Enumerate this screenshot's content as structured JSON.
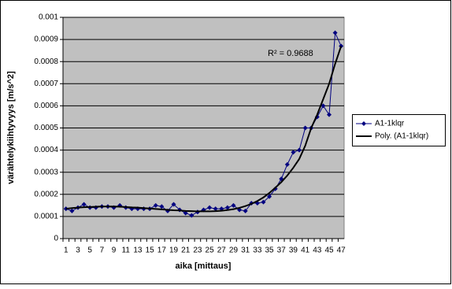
{
  "chart_data": {
    "type": "line",
    "x_label": "aika [mittaus]",
    "y_label": "värähtelykiihtyvyys [m/s^2]",
    "annotation": "R² = 0.9688",
    "categories": [
      1,
      null,
      3,
      null,
      5,
      null,
      7,
      null,
      9,
      null,
      11,
      null,
      13,
      null,
      15,
      null,
      17,
      null,
      19,
      null,
      21,
      null,
      23,
      null,
      25,
      null,
      27,
      null,
      29,
      null,
      31,
      null,
      33,
      null,
      35,
      null,
      37,
      null,
      39,
      null,
      41,
      null,
      43,
      null,
      45,
      null,
      47
    ],
    "series": [
      {
        "name": "A1-1klqr",
        "color": "#000080",
        "marker": "diamond",
        "values": [
          0.000135,
          0.000125,
          0.00014,
          0.000155,
          0.00014,
          0.00014,
          0.000145,
          0.000145,
          0.00014,
          0.00015,
          0.00014,
          0.000135,
          0.000135,
          0.000135,
          0.000135,
          0.00015,
          0.000145,
          0.000125,
          0.000155,
          0.00013,
          0.000115,
          0.000105,
          0.00012,
          0.00013,
          0.00014,
          0.000135,
          0.000135,
          0.00014,
          0.00015,
          0.00013,
          0.000125,
          0.00016,
          0.00016,
          0.000165,
          0.00019,
          0.000225,
          0.00027,
          0.000335,
          0.00039,
          0.0004,
          0.0005,
          0.0005,
          0.00055,
          0.0006,
          0.00056,
          0.00093,
          0.00087
        ]
      },
      {
        "name": "Poly. (A1-1klqr)",
        "color": "#000000",
        "marker": "none",
        "values": [
          0.000135,
          0.000138,
          0.00014,
          0.000142,
          0.000143,
          0.000144,
          0.000145,
          0.000145,
          0.000145,
          0.000144,
          0.000143,
          0.000141,
          0.00014,
          0.000138,
          0.000136,
          0.000134,
          0.000132,
          0.00013,
          0.000128,
          0.000127,
          0.000125,
          0.000124,
          0.000123,
          0.000123,
          0.000123,
          0.000124,
          0.000126,
          0.000129,
          0.000133,
          0.000139,
          0.000147,
          0.000157,
          0.00017,
          0.000186,
          0.000206,
          0.00023,
          0.000255,
          0.000285,
          0.00032,
          0.00036,
          0.00042,
          0.0005,
          0.00056,
          0.00063,
          0.0007,
          0.00079,
          0.00087
        ]
      }
    ],
    "ylim": [
      0,
      0.001
    ],
    "yticks": [
      0,
      0.0001,
      0.0002,
      0.0003,
      0.0004,
      0.0005,
      0.0006,
      0.0007,
      0.0008,
      0.0009,
      0.001
    ],
    "grid": true,
    "legend": "right",
    "plot_background": "#c0c0c0"
  }
}
